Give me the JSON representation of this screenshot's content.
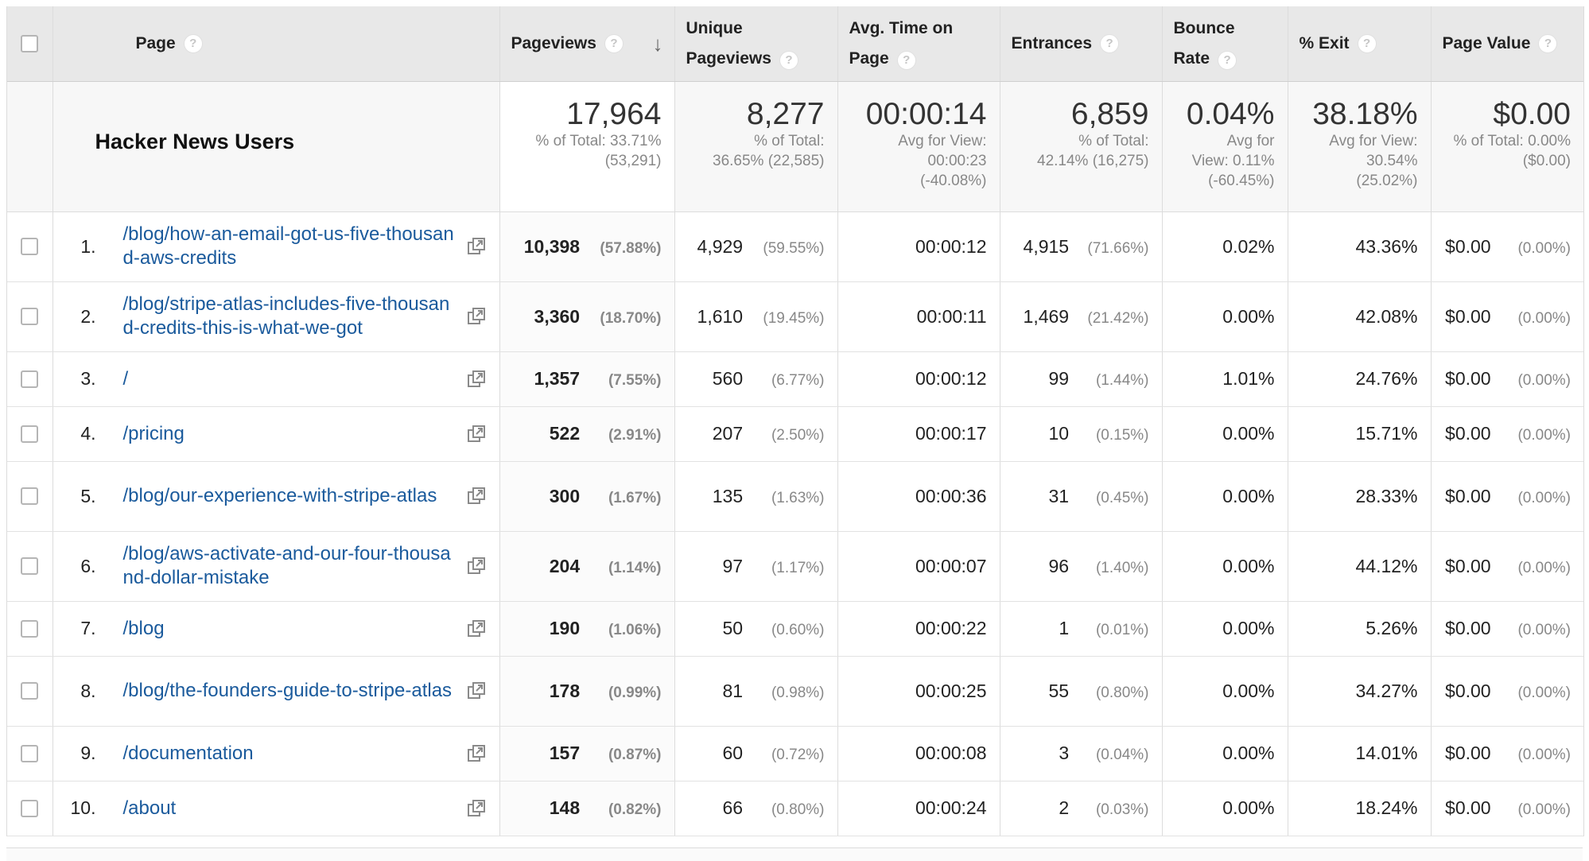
{
  "header": {
    "page": "Page",
    "pageviews": "Pageviews",
    "unique_1": "Unique",
    "unique_2": "Pageviews",
    "avg_time_1": "Avg. Time on",
    "avg_time_2": "Page",
    "entrances": "Entrances",
    "bounce_1": "Bounce",
    "bounce_2": "Rate",
    "exit": "% Exit",
    "value": "Page Value",
    "help": "?",
    "sort_arrow": "↓"
  },
  "summary": {
    "segment": "Hacker News Users",
    "pageviews": {
      "big": "17,964",
      "l1": "% of Total: 33.71%",
      "l2": "(53,291)"
    },
    "unique": {
      "big": "8,277",
      "l1": "% of Total:",
      "l2": "36.65% (22,585)"
    },
    "avg_time": {
      "big": "00:00:14",
      "l1": "Avg for View:",
      "l2": "00:00:23",
      "l3": "(-40.08%)"
    },
    "entrances": {
      "big": "6,859",
      "l1": "% of Total:",
      "l2": "42.14% (16,275)"
    },
    "bounce": {
      "big": "0.04%",
      "l1": "Avg for",
      "l2": "View: 0.11%",
      "l3": "(-60.45%)"
    },
    "exit": {
      "big": "38.18%",
      "l1": "Avg for View:",
      "l2": "30.54%",
      "l3": "(25.02%)"
    },
    "value": {
      "big": "$0.00",
      "l1": "% of Total: 0.00%",
      "l2": "($0.00)"
    }
  },
  "rows": [
    {
      "idx": "1.",
      "page": "/blog/how-an-email-got-us-five-thousand-aws-credits",
      "pv": "10,398",
      "pv_pct": "(57.88%)",
      "up": "4,929",
      "up_pct": "(59.55%)",
      "time": "00:00:12",
      "ent": "4,915",
      "ent_pct": "(71.66%)",
      "bounce": "0.02%",
      "exit": "43.36%",
      "val": "$0.00",
      "val_pct": "(0.00%)"
    },
    {
      "idx": "2.",
      "page": "/blog/stripe-atlas-includes-five-thousand-credits-this-is-what-we-got",
      "pv": "3,360",
      "pv_pct": "(18.70%)",
      "up": "1,610",
      "up_pct": "(19.45%)",
      "time": "00:00:11",
      "ent": "1,469",
      "ent_pct": "(21.42%)",
      "bounce": "0.00%",
      "exit": "42.08%",
      "val": "$0.00",
      "val_pct": "(0.00%)"
    },
    {
      "idx": "3.",
      "page": "/",
      "pv": "1,357",
      "pv_pct": "(7.55%)",
      "up": "560",
      "up_pct": "(6.77%)",
      "time": "00:00:12",
      "ent": "99",
      "ent_pct": "(1.44%)",
      "bounce": "1.01%",
      "exit": "24.76%",
      "val": "$0.00",
      "val_pct": "(0.00%)"
    },
    {
      "idx": "4.",
      "page": "/pricing",
      "pv": "522",
      "pv_pct": "(2.91%)",
      "up": "207",
      "up_pct": "(2.50%)",
      "time": "00:00:17",
      "ent": "10",
      "ent_pct": "(0.15%)",
      "bounce": "0.00%",
      "exit": "15.71%",
      "val": "$0.00",
      "val_pct": "(0.00%)"
    },
    {
      "idx": "5.",
      "page": "/blog/our-experience-with-stripe-atlas",
      "pv": "300",
      "pv_pct": "(1.67%)",
      "up": "135",
      "up_pct": "(1.63%)",
      "time": "00:00:36",
      "ent": "31",
      "ent_pct": "(0.45%)",
      "bounce": "0.00%",
      "exit": "28.33%",
      "val": "$0.00",
      "val_pct": "(0.00%)"
    },
    {
      "idx": "6.",
      "page": "/blog/aws-activate-and-our-four-thousand-dollar-mistake",
      "pv": "204",
      "pv_pct": "(1.14%)",
      "up": "97",
      "up_pct": "(1.17%)",
      "time": "00:00:07",
      "ent": "96",
      "ent_pct": "(1.40%)",
      "bounce": "0.00%",
      "exit": "44.12%",
      "val": "$0.00",
      "val_pct": "(0.00%)"
    },
    {
      "idx": "7.",
      "page": "/blog",
      "pv": "190",
      "pv_pct": "(1.06%)",
      "up": "50",
      "up_pct": "(0.60%)",
      "time": "00:00:22",
      "ent": "1",
      "ent_pct": "(0.01%)",
      "bounce": "0.00%",
      "exit": "5.26%",
      "val": "$0.00",
      "val_pct": "(0.00%)"
    },
    {
      "idx": "8.",
      "page": "/blog/the-founders-guide-to-stripe-atlas",
      "pv": "178",
      "pv_pct": "(0.99%)",
      "up": "81",
      "up_pct": "(0.98%)",
      "time": "00:00:25",
      "ent": "55",
      "ent_pct": "(0.80%)",
      "bounce": "0.00%",
      "exit": "34.27%",
      "val": "$0.00",
      "val_pct": "(0.00%)"
    },
    {
      "idx": "9.",
      "page": "/documentation",
      "pv": "157",
      "pv_pct": "(0.87%)",
      "up": "60",
      "up_pct": "(0.72%)",
      "time": "00:00:08",
      "ent": "3",
      "ent_pct": "(0.04%)",
      "bounce": "0.00%",
      "exit": "14.01%",
      "val": "$0.00",
      "val_pct": "(0.00%)"
    },
    {
      "idx": "10.",
      "page": "/about",
      "pv": "148",
      "pv_pct": "(0.82%)",
      "up": "66",
      "up_pct": "(0.80%)",
      "time": "00:00:24",
      "ent": "2",
      "ent_pct": "(0.03%)",
      "bounce": "0.00%",
      "exit": "18.24%",
      "val": "$0.00",
      "val_pct": "(0.00%)"
    }
  ]
}
